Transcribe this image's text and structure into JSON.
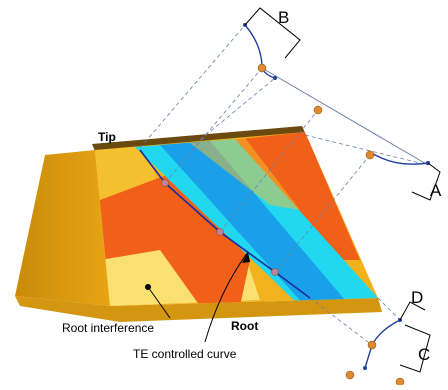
{
  "dimension_labels": {
    "b": "B",
    "a": "A",
    "d": "D",
    "c": "C"
  },
  "region_labels": {
    "tip": "Tip",
    "root": "Root"
  },
  "annotations": {
    "root_interference": "Root interference",
    "te_curve": "TE controlled curve"
  }
}
